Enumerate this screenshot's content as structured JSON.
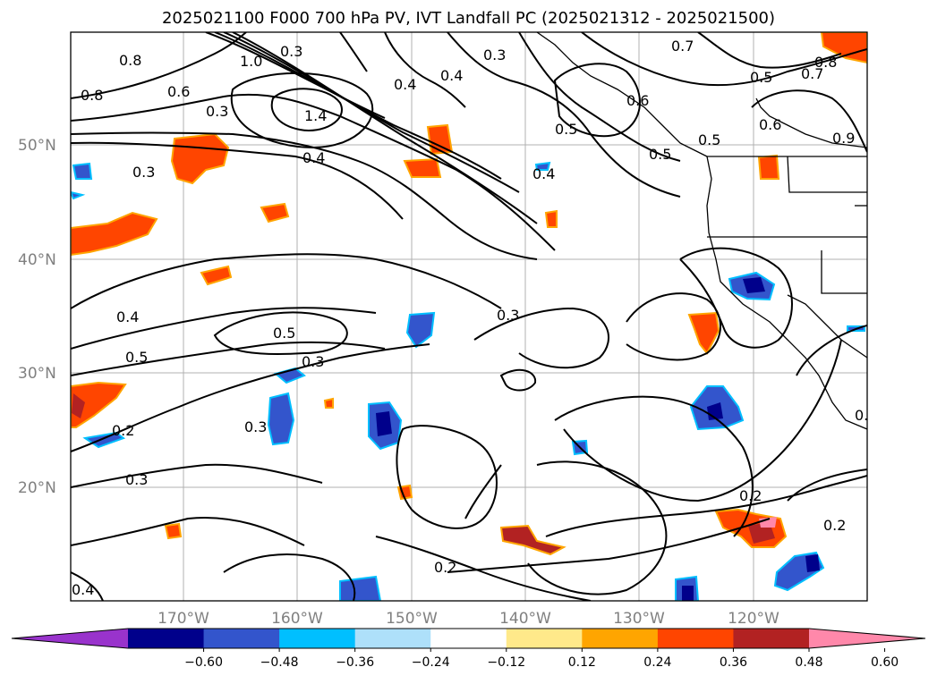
{
  "title": "2025021100 F000 700 hPa PV, IVT Landfall PC (2025021312 - 2025021500)",
  "map": {
    "lat_labels": [
      "50°N",
      "40°N",
      "30°N",
      "20°N"
    ],
    "lon_labels": [
      "170°W",
      "160°W",
      "150°W",
      "140°W",
      "130°W",
      "120°W"
    ],
    "contour_labels": [
      "0.8",
      "0.8",
      "1.0",
      "0.3",
      "0.6",
      "0.3",
      "1.4",
      "0.4",
      "0.4",
      "0.4",
      "0.3",
      "0.7",
      "0.5",
      "0.7",
      "0.8",
      "0.6",
      "0.9",
      "0.5",
      "0.4",
      "0.5",
      "0.3",
      "0.4",
      "0.5",
      "0.5",
      "0.3",
      "0.3",
      "0.2",
      "0.3",
      "0.2",
      "0.2",
      "0.2",
      "0.4",
      "0.3",
      "0.6",
      "0.5",
      "0.2"
    ]
  },
  "colorbar": {
    "ticks": [
      "−0.60",
      "−0.48",
      "−0.36",
      "−0.24",
      "−0.12",
      "0.12",
      "0.24",
      "0.36",
      "0.48",
      "0.60"
    ],
    "colors": [
      "#9933cc",
      "#00008b",
      "#3355cc",
      "#00bfff",
      "#aee0fa",
      "#ffffff",
      "#ffe98a",
      "#ffa500",
      "#ff4500",
      "#b22222",
      "#ff88aa"
    ]
  }
}
